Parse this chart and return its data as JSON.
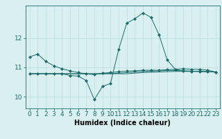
{
  "x": [
    0,
    1,
    2,
    3,
    4,
    5,
    6,
    7,
    8,
    9,
    10,
    11,
    12,
    13,
    14,
    15,
    16,
    17,
    18,
    19,
    20,
    21,
    22,
    23
  ],
  "line1": [
    11.35,
    11.45,
    11.2,
    11.05,
    10.95,
    10.88,
    10.82,
    10.78,
    10.75,
    10.8,
    10.82,
    10.85,
    10.87,
    10.88,
    10.9,
    10.9,
    10.9,
    10.92,
    10.93,
    10.87,
    10.86,
    10.86,
    10.85,
    10.84
  ],
  "line2": [
    10.78,
    10.78,
    10.78,
    10.78,
    10.78,
    10.72,
    10.7,
    10.55,
    9.9,
    10.35,
    10.45,
    11.6,
    12.5,
    12.65,
    12.85,
    12.7,
    12.1,
    11.25,
    10.93,
    10.95,
    10.93,
    10.93,
    10.9,
    10.84
  ],
  "line3": [
    10.78,
    10.78,
    10.78,
    10.78,
    10.78,
    10.78,
    10.78,
    10.78,
    10.78,
    10.78,
    10.78,
    10.78,
    10.78,
    10.8,
    10.82,
    10.83,
    10.84,
    10.85,
    10.86,
    10.86,
    10.86,
    10.86,
    10.85,
    10.84
  ],
  "line4": [
    10.78,
    10.78,
    10.78,
    10.78,
    10.78,
    10.78,
    10.78,
    10.78,
    10.78,
    10.78,
    10.79,
    10.8,
    10.82,
    10.84,
    10.86,
    10.87,
    10.88,
    10.89,
    10.89,
    10.88,
    10.87,
    10.86,
    10.85,
    10.84
  ],
  "line_color": "#1a6b6b",
  "marker": "D",
  "marker_size": 2,
  "bg_color": "#d9eff0",
  "grid_color": "#b8dde0",
  "xlabel": "Humidex (Indice chaleur)",
  "yticks": [
    10,
    11,
    12
  ],
  "xticks": [
    0,
    1,
    2,
    3,
    4,
    5,
    6,
    7,
    8,
    9,
    10,
    11,
    12,
    13,
    14,
    15,
    16,
    17,
    18,
    19,
    20,
    21,
    22,
    23
  ],
  "xlim": [
    -0.5,
    23.5
  ],
  "ylim": [
    9.6,
    13.1
  ],
  "tick_fontsize": 6.5,
  "label_fontsize": 7.0,
  "lw": 0.7
}
